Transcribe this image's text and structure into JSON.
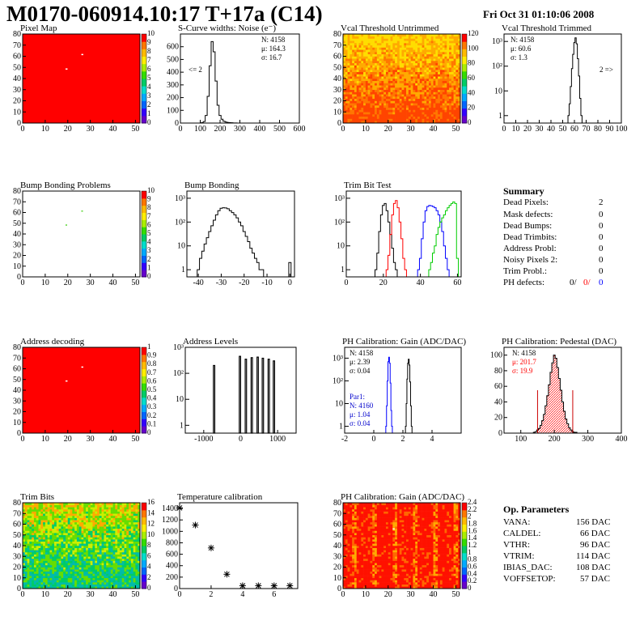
{
  "header": {
    "title": "M0170-060914.10:17 T+17a (C14)",
    "date": "Fri Oct 31 01:10:06 2008"
  },
  "chart_data": [
    {
      "id": "pixel_map",
      "type": "heatmap",
      "title": "Pixel Map",
      "xlim": [
        0,
        52
      ],
      "ylim": [
        0,
        80
      ],
      "xticks": [
        "0",
        "10",
        "20",
        "30",
        "40",
        "50"
      ],
      "yticks": [
        "0",
        "10",
        "20",
        "30",
        "40",
        "50",
        "60",
        "70",
        "80"
      ],
      "zticks": [
        "0",
        "1",
        "2",
        "3",
        "4",
        "5",
        "6",
        "7",
        "8",
        "9",
        "10"
      ],
      "fill_color": "#ff0000",
      "dead_pixels": [
        [
          19,
          48
        ],
        [
          26,
          61
        ]
      ]
    },
    {
      "id": "scurve_noise",
      "type": "histogram",
      "title": "S-Curve widths: Noise (e⁻)",
      "xlim": [
        0,
        600
      ],
      "ylim": [
        0,
        700
      ],
      "xticks": [
        "0",
        "100",
        "200",
        "300",
        "400",
        "500",
        "600"
      ],
      "yticks": [
        "0",
        "100",
        "200",
        "300",
        "400",
        "500",
        "600"
      ],
      "stats": {
        "N": "4158",
        "mean": "164.3",
        "sigma": "16.7"
      },
      "underflow_label": "<= 2",
      "x": [
        100,
        110,
        120,
        130,
        140,
        150,
        160,
        170,
        180,
        190,
        200,
        210,
        220,
        230,
        240,
        250,
        260,
        270,
        280,
        290
      ],
      "values": [
        0,
        3,
        12,
        60,
        210,
        450,
        640,
        560,
        330,
        140,
        60,
        30,
        14,
        8,
        5,
        3,
        2,
        1,
        1,
        0
      ]
    },
    {
      "id": "vcal_untrimmed",
      "type": "heatmap",
      "title": "Vcal Threshold Untrimmed",
      "xlim": [
        0,
        52
      ],
      "ylim": [
        0,
        80
      ],
      "xticks": [
        "0",
        "10",
        "20",
        "30",
        "40",
        "50"
      ],
      "yticks": [
        "0",
        "10",
        "20",
        "30",
        "40",
        "50",
        "60",
        "70",
        "80"
      ],
      "zticks": [
        "0",
        "20",
        "40",
        "60",
        "80",
        "100",
        "120"
      ],
      "palette": "orange-gradient"
    },
    {
      "id": "vcal_trimmed",
      "type": "histogram",
      "title": "Vcal Threshold Trimmed",
      "yscale": "log",
      "xlim": [
        0,
        100
      ],
      "ylim": [
        0.5,
        2000
      ],
      "xticks": [
        "0",
        "10",
        "20",
        "30",
        "40",
        "50",
        "60",
        "70",
        "80",
        "90",
        "100"
      ],
      "yticks": [
        "1",
        "10",
        "10²",
        "10³"
      ],
      "stats": {
        "N": "4158",
        "mean": "60.6",
        "sigma": "1.3"
      },
      "overflow_label": "2 =>",
      "x": [
        55,
        56,
        57,
        58,
        59,
        60,
        61,
        62,
        63,
        64,
        65,
        66
      ],
      "values": [
        1,
        3,
        15,
        80,
        300,
        900,
        1400,
        800,
        200,
        40,
        5,
        1
      ]
    },
    {
      "id": "bump_problems",
      "type": "heatmap",
      "title": "Bump Bonding Problems",
      "xlim": [
        0,
        52
      ],
      "ylim": [
        0,
        80
      ],
      "xticks": [
        "0",
        "10",
        "20",
        "30",
        "40",
        "50"
      ],
      "yticks": [
        "0",
        "10",
        "20",
        "30",
        "40",
        "50",
        "60",
        "70",
        "80"
      ],
      "zticks": [
        "0",
        "1",
        "2",
        "3",
        "4",
        "5",
        "6",
        "7",
        "8",
        "9",
        "10"
      ],
      "points": [
        [
          19,
          48
        ],
        [
          26,
          61
        ]
      ]
    },
    {
      "id": "bump_bonding",
      "type": "histogram",
      "title": "Bump Bonding",
      "yscale": "log",
      "xlim": [
        -45,
        2
      ],
      "ylim": [
        0.5,
        2000
      ],
      "xticks": [
        "-40",
        "-30",
        "-20",
        "-10",
        "0"
      ],
      "yticks": [
        "1",
        "10",
        "10²",
        "10³"
      ],
      "x": [
        -40,
        -39,
        -38,
        -37,
        -36,
        -35,
        -34,
        -33,
        -32,
        -31,
        -30,
        -29,
        -28,
        -27,
        -26,
        -25,
        -24,
        -23,
        -22,
        -21,
        -20,
        -19,
        -18,
        -17,
        -16,
        -15,
        -14,
        -13,
        -12,
        -11
      ],
      "values": [
        1,
        3,
        6,
        12,
        22,
        40,
        70,
        120,
        200,
        300,
        380,
        400,
        390,
        360,
        300,
        250,
        200,
        150,
        100,
        70,
        40,
        25,
        15,
        8,
        5,
        3,
        2,
        1,
        1,
        0
      ],
      "extra": {
        "x": 0,
        "value": 2
      }
    },
    {
      "id": "trim_bit_test",
      "type": "histogram",
      "title": "Trim Bit Test",
      "yscale": "log",
      "xlim": [
        0,
        62
      ],
      "ylim": [
        0.5,
        2000
      ],
      "xticks": [
        "0",
        "20",
        "40",
        "60"
      ],
      "yticks": [
        "1",
        "10",
        "10²",
        "10³"
      ],
      "series": [
        {
          "color": "#000000",
          "x": [
            16,
            17,
            18,
            19,
            20,
            21,
            22,
            23,
            24,
            25,
            26,
            27
          ],
          "values": [
            1,
            5,
            40,
            200,
            500,
            600,
            300,
            100,
            30,
            8,
            2,
            1
          ]
        },
        {
          "color": "#ff0000",
          "x": [
            22,
            23,
            24,
            25,
            26,
            27,
            28,
            29,
            30,
            31,
            32
          ],
          "values": [
            1,
            4,
            30,
            200,
            600,
            800,
            400,
            100,
            20,
            3,
            1
          ]
        },
        {
          "color": "#0000ff",
          "x": [
            39,
            40,
            41,
            42,
            43,
            44,
            45,
            46,
            47,
            48,
            49,
            50,
            51,
            52,
            53,
            54,
            55
          ],
          "values": [
            1,
            3,
            20,
            100,
            300,
            450,
            500,
            480,
            450,
            400,
            300,
            200,
            100,
            40,
            10,
            3,
            1
          ]
        },
        {
          "color": "#00cc00",
          "x": [
            45,
            46,
            47,
            48,
            49,
            50,
            51,
            52,
            53,
            54,
            55,
            56,
            57,
            58,
            59,
            60
          ],
          "values": [
            1,
            2,
            5,
            10,
            30,
            60,
            100,
            150,
            200,
            300,
            400,
            500,
            600,
            700,
            600,
            3
          ]
        }
      ]
    },
    {
      "id": "summary",
      "type": "table",
      "title": "Summary",
      "rows": [
        {
          "label": "Dead Pixels:",
          "value": "2"
        },
        {
          "label": "Mask defects:",
          "value": "0"
        },
        {
          "label": "Dead Bumps:",
          "value": "0"
        },
        {
          "label": "Dead Trimbits:",
          "value": "0"
        },
        {
          "label": "Address Probl:",
          "value": "0"
        },
        {
          "label": "Noisy Pixels 2:",
          "value": "0"
        },
        {
          "label": "Trim Probl.:",
          "value": "0"
        }
      ],
      "ph_defects": {
        "label": "PH defects:",
        "v1": "0/",
        "v2": "0/",
        "v3": "0",
        "colors": [
          "#000000",
          "#ff0000",
          "#0000ff"
        ]
      }
    },
    {
      "id": "address_decoding",
      "type": "heatmap",
      "title": "Address decoding",
      "xlim": [
        0,
        52
      ],
      "ylim": [
        0,
        80
      ],
      "xticks": [
        "0",
        "10",
        "20",
        "30",
        "40",
        "50"
      ],
      "yticks": [
        "0",
        "10",
        "20",
        "30",
        "40",
        "50",
        "60",
        "70",
        "80"
      ],
      "zticks": [
        "0",
        "0.1",
        "0.2",
        "0.3",
        "0.4",
        "0.5",
        "0.6",
        "0.7",
        "0.8",
        "0.9",
        "1"
      ],
      "fill_color": "#ff0000",
      "dead_pixels": [
        [
          19,
          48
        ],
        [
          26,
          61
        ]
      ]
    },
    {
      "id": "address_levels",
      "type": "histogram",
      "title": "Address Levels",
      "yscale": "log",
      "xlim": [
        -1500,
        1500
      ],
      "ylim": [
        0.5,
        1000
      ],
      "xticks": [
        "-1000",
        "0",
        "1000"
      ],
      "yticks": [
        "1",
        "10",
        "10²",
        "10³"
      ],
      "peaks": [
        {
          "x": -720,
          "value": 200
        },
        {
          "x": -20,
          "value": 450
        },
        {
          "x": 140,
          "value": 350
        },
        {
          "x": 300,
          "value": 400
        },
        {
          "x": 460,
          "value": 420
        },
        {
          "x": 600,
          "value": 380
        },
        {
          "x": 760,
          "value": 350
        },
        {
          "x": 900,
          "value": 300
        }
      ]
    },
    {
      "id": "ph_gain",
      "type": "histogram",
      "title": "PH Calibration: Gain (ADC/DAC)",
      "yscale": "log",
      "xlim": [
        -2,
        6
      ],
      "ylim": [
        0.5,
        3000
      ],
      "xticks": [
        "-2",
        "0",
        "2",
        "4"
      ],
      "yticks": [
        "1",
        "10",
        "10²",
        "10³"
      ],
      "stats": {
        "N": "4158",
        "mean": "2.39",
        "sigma": "0.04"
      },
      "par1_stats": {
        "label": "Par1:",
        "N": "4160",
        "mean": "1.04",
        "sigma": "0.04"
      },
      "series": [
        {
          "color": "#000000",
          "x": [
            2.2,
            2.25,
            2.3,
            2.35,
            2.4,
            2.45,
            2.5,
            2.55,
            2.6
          ],
          "values": [
            1,
            10,
            120,
            600,
            900,
            500,
            90,
            8,
            1
          ]
        },
        {
          "color": "#0000ff",
          "x": [
            0.85,
            0.9,
            0.95,
            1.0,
            1.05,
            1.1,
            1.15,
            1.2,
            1.25
          ],
          "values": [
            1,
            8,
            100,
            700,
            1100,
            600,
            80,
            5,
            1
          ]
        }
      ]
    },
    {
      "id": "ph_pedestal",
      "type": "histogram",
      "title": "PH Calibration: Pedestal (DAC)",
      "xlim": [
        50,
        400
      ],
      "ylim": [
        0,
        110
      ],
      "xticks": [
        "100",
        "200",
        "300",
        "400"
      ],
      "yticks": [
        "0",
        "20",
        "40",
        "60",
        "80",
        "100"
      ],
      "stats": {
        "N": "4158",
        "mean": "201.7",
        "sigma": "19.9"
      },
      "x": [
        140,
        145,
        150,
        155,
        160,
        165,
        170,
        175,
        180,
        185,
        190,
        195,
        200,
        205,
        210,
        215,
        220,
        225,
        230,
        235,
        240,
        245,
        250,
        255,
        260,
        265,
        270
      ],
      "values": [
        1,
        2,
        4,
        6,
        10,
        16,
        24,
        35,
        48,
        62,
        78,
        90,
        100,
        96,
        84,
        70,
        55,
        40,
        28,
        18,
        12,
        7,
        4,
        2,
        1,
        1,
        0
      ],
      "cut_lines": [
        150,
        255
      ]
    },
    {
      "id": "trim_bits",
      "type": "heatmap",
      "title": "Trim Bits",
      "xlim": [
        0,
        52
      ],
      "ylim": [
        0,
        80
      ],
      "xticks": [
        "0",
        "10",
        "20",
        "30",
        "40",
        "50"
      ],
      "yticks": [
        "0",
        "10",
        "20",
        "30",
        "40",
        "50",
        "60",
        "70",
        "80"
      ],
      "zticks": [
        "0",
        "2",
        "4",
        "6",
        "8",
        "10",
        "12",
        "14",
        "16"
      ],
      "palette": "green-gradient"
    },
    {
      "id": "temperature_calibration",
      "type": "scatter",
      "title": "Temperature calibration",
      "xlim": [
        0,
        7.5
      ],
      "ylim": [
        0,
        1500
      ],
      "xticks": [
        "0",
        "2",
        "4",
        "6"
      ],
      "yticks": [
        "0",
        "200",
        "400",
        "600",
        "800",
        "1000",
        "1200",
        "1400"
      ],
      "x": [
        0,
        1,
        2,
        3,
        4,
        5,
        6,
        7
      ],
      "values": [
        1410,
        1110,
        710,
        250,
        50,
        50,
        50,
        50
      ],
      "marker": "*"
    },
    {
      "id": "ph_gain_map",
      "type": "heatmap",
      "title": "PH Calibration: Gain (ADC/DAC)",
      "xlim": [
        0,
        52
      ],
      "ylim": [
        0,
        80
      ],
      "xticks": [
        "0",
        "10",
        "20",
        "30",
        "40",
        "50"
      ],
      "yticks": [
        "0",
        "10",
        "20",
        "30",
        "40",
        "50",
        "60",
        "70",
        "80"
      ],
      "zticks": [
        "0",
        "0.2",
        "0.4",
        "0.6",
        "0.8",
        "1",
        "1.2",
        "1.4",
        "1.6",
        "1.8",
        "2",
        "2.2",
        "2.4"
      ],
      "palette": "red-gradient",
      "white_pixel": [
        22,
        55
      ]
    },
    {
      "id": "op_parameters",
      "type": "table",
      "title": "Op. Parameters",
      "rows": [
        {
          "label": "VANA:",
          "value": "156 DAC"
        },
        {
          "label": "CALDEL:",
          "value": "66 DAC"
        },
        {
          "label": "VTHR:",
          "value": "96 DAC"
        },
        {
          "label": "VTRIM:",
          "value": "114 DAC"
        },
        {
          "label": "IBIAS_DAC:",
          "value": "108 DAC"
        },
        {
          "label": "VOFFSETOP:",
          "value": "57 DAC"
        }
      ]
    }
  ]
}
